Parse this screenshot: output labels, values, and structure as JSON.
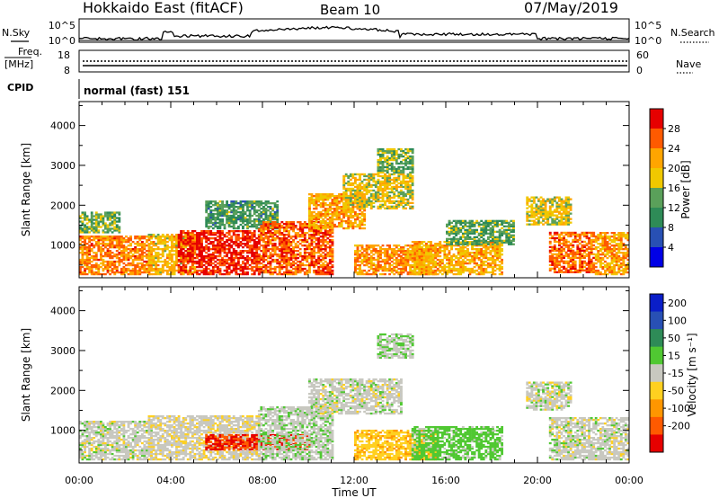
{
  "header": {
    "station": "Hokkaido East (fitACF)",
    "beam": "Beam 10",
    "date": "07/May/2019"
  },
  "top_panels": {
    "nsky_label": "N.Sky",
    "nsky_ticks": [
      "10^5",
      "10^0"
    ],
    "nsearch_label": "N.Search",
    "nsearch_ticks": [
      "10^5",
      "10^0"
    ],
    "freq_label": "Freq.",
    "freq_unit": "[MHz]",
    "freq_ticks": [
      "18",
      "8"
    ],
    "nave_label": "Nave",
    "nave_ticks": [
      "60",
      "0"
    ],
    "cpid_label": "CPID",
    "cpid_text": "normal (fast) 151"
  },
  "colors": {
    "power_scale": [
      "#0000e6",
      "#2850b4",
      "#2e8b57",
      "#5aa05a",
      "#f0c800",
      "#ffa500",
      "#ff5a00",
      "#e60000"
    ],
    "velocity_scale": [
      "#0a1ec8",
      "#2850b4",
      "#2e8b57",
      "#50c832",
      "#c8c8c0",
      "#ffd020",
      "#ff9600",
      "#ff5a00",
      "#e60000"
    ]
  },
  "chart_data": [
    {
      "type": "heatmap",
      "panel": "power",
      "ylabel": "Slant Range [km]",
      "yticks": [
        1000,
        2000,
        3000,
        4000
      ],
      "ylim": [
        180,
        4600
      ],
      "xlim": [
        0,
        24
      ],
      "xticks": [
        "00:00",
        "04:00",
        "08:00",
        "12:00",
        "16:00",
        "20:00",
        "00:00"
      ],
      "colorbar": {
        "label": "Power [dB]",
        "ticks": [
          "4",
          "8",
          "12",
          "16",
          "20",
          "24",
          "28"
        ],
        "range": [
          0,
          32
        ]
      },
      "echo_regions": [
        {
          "t_start": 0.0,
          "t_end": 3.2,
          "r_min": 250,
          "r_max": 1200,
          "power": 24
        },
        {
          "t_start": 0.0,
          "t_end": 1.8,
          "r_min": 1300,
          "r_max": 1800,
          "power": 14
        },
        {
          "t_start": 3.0,
          "t_end": 5.0,
          "r_min": 250,
          "r_max": 1250,
          "power": 20
        },
        {
          "t_start": 4.3,
          "t_end": 7.8,
          "r_min": 250,
          "r_max": 1350,
          "power": 29
        },
        {
          "t_start": 5.5,
          "t_end": 8.6,
          "r_min": 1400,
          "r_max": 2100,
          "power": 12
        },
        {
          "t_start": 7.8,
          "t_end": 11.0,
          "r_min": 250,
          "r_max": 1600,
          "power": 26
        },
        {
          "t_start": 10.0,
          "t_end": 12.4,
          "r_min": 1400,
          "r_max": 2300,
          "power": 22
        },
        {
          "t_start": 11.5,
          "t_end": 14.5,
          "r_min": 1900,
          "r_max": 2800,
          "power": 18
        },
        {
          "t_start": 12.0,
          "t_end": 15.5,
          "r_min": 250,
          "r_max": 1000,
          "power": 23
        },
        {
          "t_start": 13.0,
          "t_end": 14.5,
          "r_min": 2800,
          "r_max": 3400,
          "power": 14
        },
        {
          "t_start": 14.5,
          "t_end": 18.5,
          "r_min": 250,
          "r_max": 1100,
          "power": 21
        },
        {
          "t_start": 16.0,
          "t_end": 19.0,
          "r_min": 1000,
          "r_max": 1600,
          "power": 13
        },
        {
          "t_start": 19.5,
          "t_end": 21.5,
          "r_min": 1500,
          "r_max": 2200,
          "power": 18
        },
        {
          "t_start": 20.5,
          "t_end": 22.5,
          "r_min": 300,
          "r_max": 1300,
          "power": 25
        },
        {
          "t_start": 22.5,
          "t_end": 24.0,
          "r_min": 250,
          "r_max": 1300,
          "power": 22
        }
      ]
    },
    {
      "type": "heatmap",
      "panel": "velocity",
      "ylabel": "Slant Range [km]",
      "yticks": [
        1000,
        2000,
        3000,
        4000
      ],
      "ylim": [
        180,
        4600
      ],
      "xlim": [
        0,
        24
      ],
      "xticks": [
        "00:00",
        "04:00",
        "08:00",
        "12:00",
        "16:00",
        "20:00",
        "00:00"
      ],
      "xlabel": "Time UT",
      "colorbar": {
        "label": "Velocity [m s⁻¹]",
        "ticks": [
          "200",
          "100",
          "50",
          "15",
          "-15",
          "-50",
          "-100",
          "-200"
        ],
        "range": [
          -250,
          250
        ]
      },
      "echo_regions": [
        {
          "t_start": 0.0,
          "t_end": 3.2,
          "r_min": 250,
          "r_max": 1200,
          "velocity": 0
        },
        {
          "t_start": 3.0,
          "t_end": 7.8,
          "r_min": 250,
          "r_max": 1350,
          "velocity": -5
        },
        {
          "t_start": 5.5,
          "t_end": 10.0,
          "r_min": 500,
          "r_max": 900,
          "velocity": -200
        },
        {
          "t_start": 7.8,
          "t_end": 11.0,
          "r_min": 250,
          "r_max": 1600,
          "velocity": 5
        },
        {
          "t_start": 10.0,
          "t_end": 14.0,
          "r_min": 1400,
          "r_max": 2300,
          "velocity": 0
        },
        {
          "t_start": 12.0,
          "t_end": 15.5,
          "r_min": 250,
          "r_max": 1000,
          "velocity": -40
        },
        {
          "t_start": 13.0,
          "t_end": 14.5,
          "r_min": 2800,
          "r_max": 3400,
          "velocity": 10
        },
        {
          "t_start": 14.5,
          "t_end": 18.5,
          "r_min": 250,
          "r_max": 1100,
          "velocity": 30
        },
        {
          "t_start": 19.5,
          "t_end": 21.5,
          "r_min": 1500,
          "r_max": 2200,
          "velocity": 0
        },
        {
          "t_start": 20.5,
          "t_end": 24.0,
          "r_min": 250,
          "r_max": 1300,
          "velocity": 0
        }
      ]
    }
  ]
}
